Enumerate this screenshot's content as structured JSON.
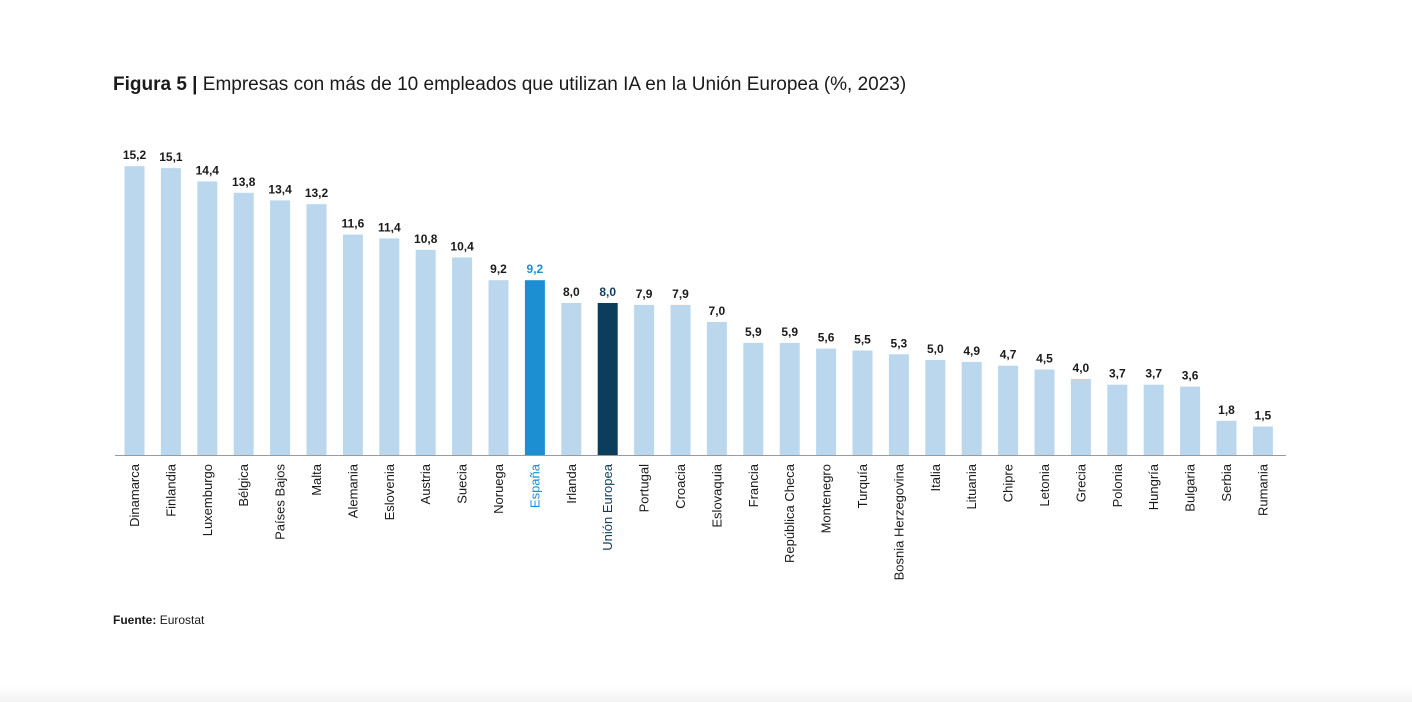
{
  "figure": {
    "number_label": "Figura 5 |",
    "title_text": "Empresas con más de 10 empleados que utilizan IA en la Unión Europea (%, 2023)"
  },
  "source": {
    "label": "Fuente:",
    "text": "Eurostat"
  },
  "colors": {
    "default_bar": "#bad7ee",
    "highlight_spain": "#1c8fd3",
    "highlight_eu": "#0d3d5c",
    "label_default": "#1a1a1a"
  },
  "chart_data": {
    "type": "bar",
    "title": "Empresas con más de 10 empleados que utilizan IA en la Unión Europea (%, 2023)",
    "xlabel": "",
    "ylabel": "",
    "ylim": [
      0,
      16
    ],
    "grid": false,
    "categories": [
      "Dinamarca",
      "Finlandia",
      "Luxemburgo",
      "Bélgica",
      "Países Bajos",
      "Malta",
      "Alemania",
      "Eslovenia",
      "Austria",
      "Suecia",
      "Noruega",
      "España",
      "Irlanda",
      "Unión Europea",
      "Portugal",
      "Croacia",
      "Eslovaquia",
      "Francia",
      "República Checa",
      "Montenegro",
      "Turquía",
      "Bosnia Herzegovina",
      "Italia",
      "Lituania",
      "Chipre",
      "Letonia",
      "Grecia",
      "Polonia",
      "Hungría",
      "Bulgaria",
      "Serbia",
      "Rumania"
    ],
    "values": [
      15.2,
      15.1,
      14.4,
      13.8,
      13.4,
      13.2,
      11.6,
      11.4,
      10.8,
      10.4,
      9.2,
      9.2,
      8.0,
      8.0,
      7.9,
      7.9,
      7.0,
      5.9,
      5.9,
      5.6,
      5.5,
      5.3,
      5.0,
      4.9,
      4.7,
      4.5,
      4.0,
      3.7,
      3.7,
      3.6,
      1.8,
      1.5
    ],
    "value_labels": [
      "15,2",
      "15,1",
      "14,4",
      "13,8",
      "13,4",
      "13,2",
      "11,6",
      "11,4",
      "10,8",
      "10,4",
      "9,2",
      "9,2",
      "8,0",
      "8,0",
      "7,9",
      "7,9",
      "7,0",
      "5,9",
      "5,9",
      "5,6",
      "5,5",
      "5,3",
      "5,0",
      "4,9",
      "4,7",
      "4,5",
      "4,0",
      "3,7",
      "3,7",
      "3,6",
      "1,8",
      "1,5"
    ],
    "highlights": {
      "España": "highlight_spain",
      "Unión Europea": "highlight_eu"
    }
  }
}
